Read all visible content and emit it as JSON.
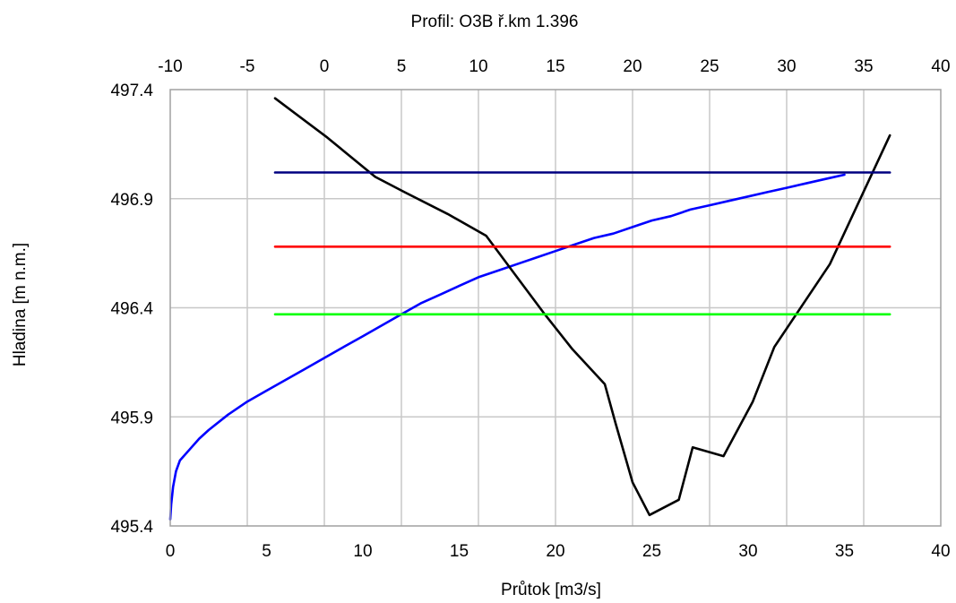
{
  "chart_data": {
    "type": "line",
    "title": "Profil: O3B  ř.km 1.396",
    "xlabel": "Průtok [m3/s]",
    "ylabel": "Hladina [m n.m.]",
    "xlim": [
      0,
      40
    ],
    "ylim": [
      495.4,
      497.4
    ],
    "x2lim": [
      -10,
      40
    ],
    "x_ticks": [
      "0",
      "5",
      "10",
      "15",
      "20",
      "25",
      "30",
      "35",
      "40"
    ],
    "x2_ticks": [
      "-10",
      "-5",
      "0",
      "5",
      "10",
      "15",
      "20",
      "25",
      "30",
      "35",
      "40"
    ],
    "y_ticks": [
      "495.4",
      "495.9",
      "496.4",
      "496.9",
      "497.4"
    ],
    "grid": true,
    "series": [
      {
        "axis": "bottom",
        "color": "#0000ff",
        "x": [
          0,
          0.05,
          0.15,
          0.3,
          0.5,
          1.0,
          1.5,
          2.0,
          3.0,
          4.0,
          5.0,
          6.0,
          7.0,
          8.0,
          9.0,
          10.0,
          11.0,
          12.0,
          13.0,
          14.0,
          15.0,
          16.0,
          17.0,
          18.0,
          19.0,
          20.0,
          21.0,
          22.0,
          23.0,
          24.0,
          25.0,
          26.0,
          27.0,
          28.0,
          29.0,
          30.0,
          31.0,
          32.0,
          33.0,
          34.0,
          35.0
        ],
        "y": [
          495.43,
          495.5,
          495.58,
          495.65,
          495.7,
          495.75,
          495.8,
          495.84,
          495.91,
          495.97,
          496.02,
          496.07,
          496.12,
          496.17,
          496.22,
          496.27,
          496.32,
          496.37,
          496.42,
          496.46,
          496.5,
          496.54,
          496.57,
          496.6,
          496.63,
          496.66,
          496.69,
          496.72,
          496.74,
          496.77,
          496.8,
          496.82,
          496.85,
          496.87,
          496.89,
          496.91,
          496.93,
          496.95,
          496.97,
          496.99,
          497.01
        ]
      },
      {
        "axis": "top",
        "color": "#000000",
        "x": [
          -3.2,
          0.2,
          3.3,
          5.2,
          8.0,
          10.5,
          12.4,
          14.2,
          16.1,
          18.2,
          18.9,
          20.0,
          21.1,
          23.0,
          23.9,
          25.9,
          27.8,
          29.2,
          32.8,
          36.7
        ],
        "y": [
          497.36,
          497.18,
          497.0,
          496.93,
          496.83,
          496.73,
          496.55,
          496.38,
          496.21,
          496.05,
          495.87,
          495.6,
          495.45,
          495.52,
          495.76,
          495.72,
          495.97,
          496.22,
          496.6,
          497.19
        ]
      },
      {
        "axis": "top",
        "color": "#000080",
        "x": [
          -3.2,
          36.7
        ],
        "y": [
          497.02,
          497.02
        ]
      },
      {
        "axis": "top",
        "color": "#ff0000",
        "x": [
          -3.2,
          36.7
        ],
        "y": [
          496.68,
          496.68
        ]
      },
      {
        "axis": "top",
        "color": "#00ff00",
        "x": [
          -3.2,
          36.7
        ],
        "y": [
          496.37,
          496.37
        ]
      }
    ]
  }
}
